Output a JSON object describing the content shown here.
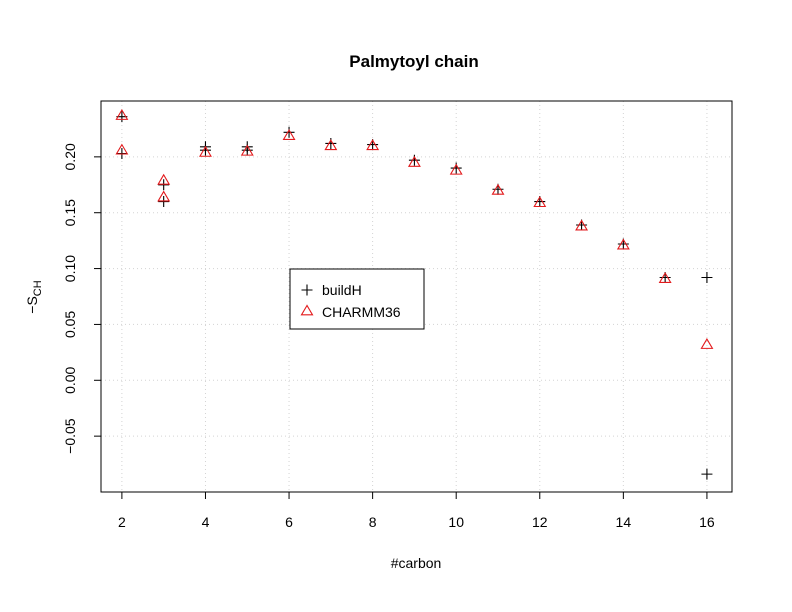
{
  "chart_data": {
    "type": "scatter",
    "title": "Palmytoyl chain",
    "xlabel": "#carbon",
    "ylabel": "−S",
    "ylabel_sub": "CH",
    "xlim": [
      1.5,
      16.6
    ],
    "ylim": [
      -0.1,
      0.25
    ],
    "x_ticks": [
      2,
      4,
      6,
      8,
      10,
      12,
      14,
      16
    ],
    "y_ticks": [
      -0.05,
      0.0,
      0.05,
      0.1,
      0.15,
      0.2
    ],
    "y_tick_labels": [
      "−0.05",
      "0.00",
      "0.05",
      "0.10",
      "0.15",
      "0.20"
    ],
    "grid": true,
    "legend_position": "center",
    "series": [
      {
        "name": "buildH",
        "marker": "plus",
        "color": "#000000",
        "points": [
          [
            2,
            0.236
          ],
          [
            2,
            0.203
          ],
          [
            3,
            0.175
          ],
          [
            3,
            0.16
          ],
          [
            4,
            0.209
          ],
          [
            4,
            0.206
          ],
          [
            5,
            0.209
          ],
          [
            5,
            0.206
          ],
          [
            6,
            0.222
          ],
          [
            7,
            0.212
          ],
          [
            8,
            0.211
          ],
          [
            9,
            0.197
          ],
          [
            10,
            0.19
          ],
          [
            11,
            0.171
          ],
          [
            12,
            0.16
          ],
          [
            13,
            0.139
          ],
          [
            14,
            0.122
          ],
          [
            15,
            0.092
          ],
          [
            16,
            0.092
          ],
          [
            16,
            -0.084
          ]
        ]
      },
      {
        "name": "CHARMM36",
        "marker": "triangle",
        "color": "#e31a1c",
        "points": [
          [
            2,
            0.237
          ],
          [
            2,
            0.206
          ],
          [
            3,
            0.179
          ],
          [
            3,
            0.164
          ],
          [
            4,
            0.204
          ],
          [
            5,
            0.205
          ],
          [
            6,
            0.219
          ],
          [
            7,
            0.21
          ],
          [
            8,
            0.21
          ],
          [
            9,
            0.195
          ],
          [
            10,
            0.188
          ],
          [
            11,
            0.17
          ],
          [
            12,
            0.159
          ],
          [
            13,
            0.138
          ],
          [
            14,
            0.121
          ],
          [
            15,
            0.091
          ],
          [
            16,
            0.032
          ]
        ]
      }
    ]
  }
}
